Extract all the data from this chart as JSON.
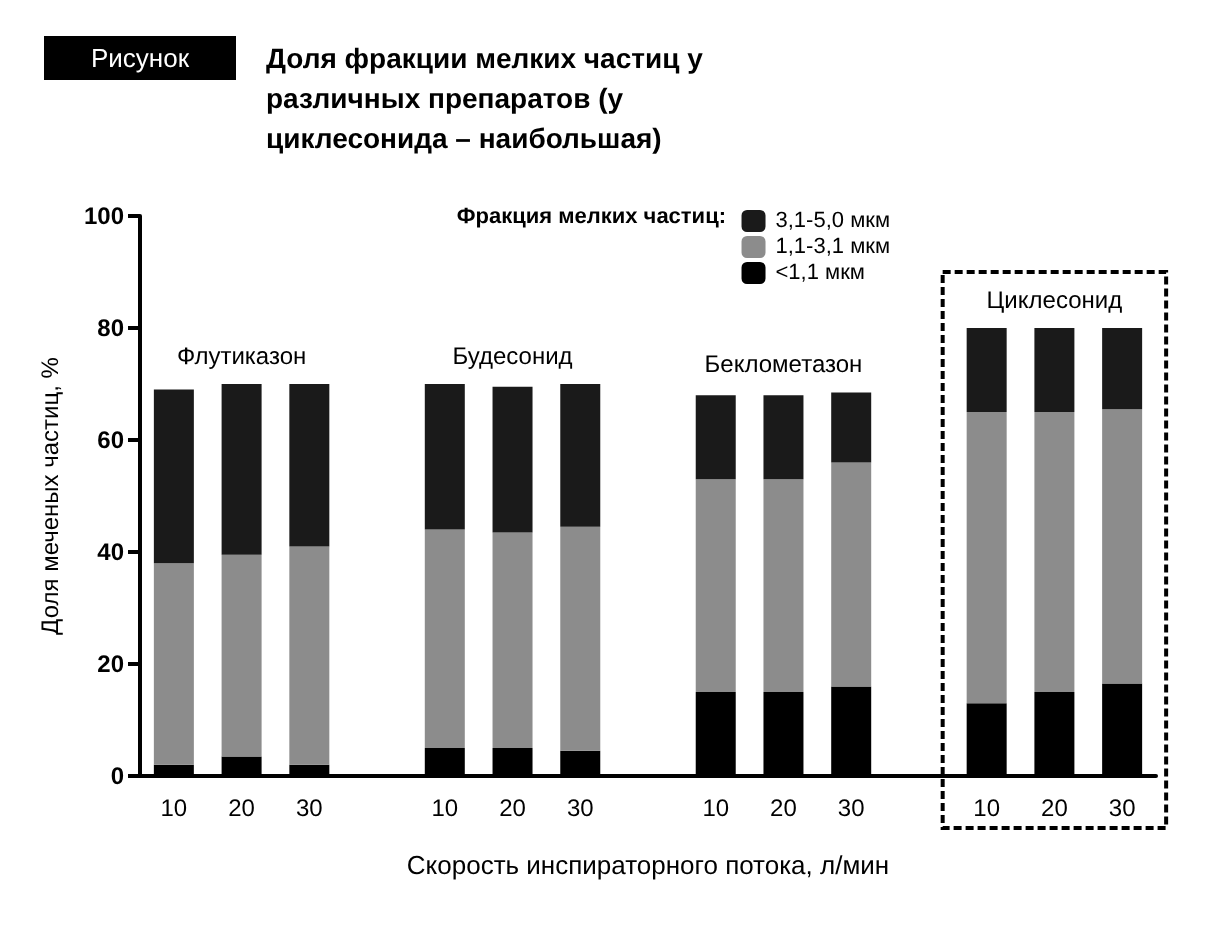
{
  "chart_data": {
    "type": "bar",
    "stacked": true,
    "title": "Доля фракции мелких частиц у различных препаратов (у циклесонида – наибольшая)",
    "xlabel": "Скорость инспираторного потока, л/мин",
    "ylabel": "Доля меченых частиц, %",
    "legend_title": "Фракция мелких частиц:",
    "legend": "top right",
    "grid": false,
    "annotations": [
      "Рисунок",
      "Флутиказон",
      "Будесонид",
      "Беклометазон",
      "Циклесонид"
    ],
    "categories": [
      "10",
      "20",
      "30",
      null,
      "10",
      "20",
      "30",
      null,
      "10",
      "20",
      "30",
      null,
      "10",
      "20",
      "30"
    ],
    "ylim": [
      0,
      100
    ],
    "yticks": [
      0,
      20,
      40,
      60,
      80,
      100
    ],
    "series": [
      {
        "name": "<1,1 мкм",
        "color": "#000000",
        "values": [
          2,
          3.5,
          2,
          null,
          5,
          5,
          4.5,
          null,
          15,
          15,
          16,
          null,
          13,
          15,
          16.5
        ]
      },
      {
        "name": "1,1-3,1 мкм",
        "color": "#8c8c8c",
        "values": [
          36,
          36,
          39,
          null,
          39,
          38.5,
          40,
          null,
          38,
          38,
          40,
          null,
          52,
          50,
          49
        ]
      },
      {
        "name": "3,1-5,0 мкм",
        "color": "#1a1a1a",
        "values": [
          31,
          30.5,
          29,
          null,
          26,
          26,
          25.5,
          null,
          15,
          15,
          12.5,
          null,
          15,
          15,
          14.5
        ]
      }
    ]
  }
}
